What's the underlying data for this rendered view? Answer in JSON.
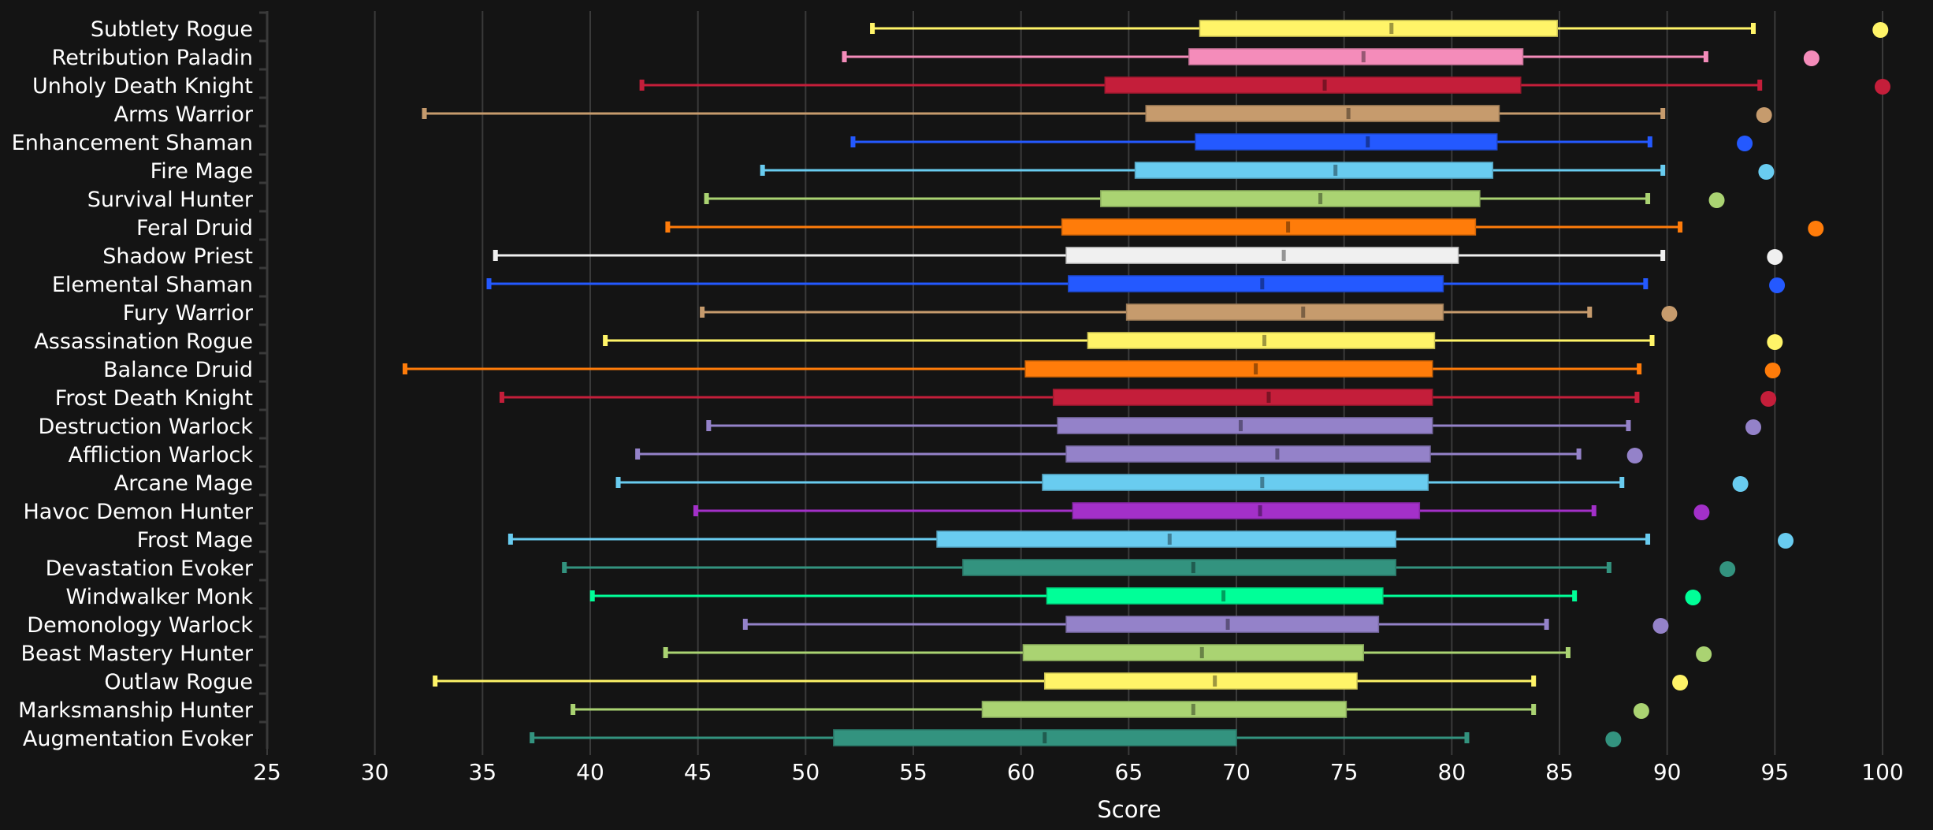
{
  "chart_data": {
    "type": "boxplot",
    "title": "",
    "xlabel": "Score",
    "ylabel": "",
    "xlim": [
      25,
      100
    ],
    "xticks": [
      25,
      30,
      35,
      40,
      45,
      50,
      55,
      60,
      65,
      70,
      75,
      80,
      85,
      90,
      95,
      100
    ],
    "grid": "vertical",
    "legend": "none",
    "series": [
      {
        "name": "Subtlety Rogue",
        "color": "#FFF468",
        "min": 53.1,
        "q1": 68.3,
        "median": 77.2,
        "q3": 84.9,
        "max": 94.0,
        "point": 99.9
      },
      {
        "name": "Retribution Paladin",
        "color": "#F48CBA",
        "min": 51.8,
        "q1": 67.8,
        "median": 75.9,
        "q3": 83.3,
        "max": 91.8,
        "point": 96.7
      },
      {
        "name": "Unholy Death Knight",
        "color": "#C41E3A",
        "min": 42.4,
        "q1": 63.9,
        "median": 74.1,
        "q3": 83.2,
        "max": 94.3,
        "point": 100.0
      },
      {
        "name": "Arms Warrior",
        "color": "#C69B6D",
        "min": 32.3,
        "q1": 65.8,
        "median": 75.2,
        "q3": 82.2,
        "max": 89.8,
        "point": 94.5
      },
      {
        "name": "Enhancement Shaman",
        "color": "#2459FF",
        "min": 52.2,
        "q1": 68.1,
        "median": 76.1,
        "q3": 82.1,
        "max": 89.2,
        "point": 93.6
      },
      {
        "name": "Fire Mage",
        "color": "#69CCF0",
        "min": 48.0,
        "q1": 65.3,
        "median": 74.6,
        "q3": 81.9,
        "max": 89.8,
        "point": 94.6
      },
      {
        "name": "Survival Hunter",
        "color": "#AAD372",
        "min": 45.4,
        "q1": 63.7,
        "median": 73.9,
        "q3": 81.3,
        "max": 89.1,
        "point": 92.3
      },
      {
        "name": "Feral Druid",
        "color": "#FF7C0A",
        "min": 43.6,
        "q1": 61.9,
        "median": 72.4,
        "q3": 81.1,
        "max": 90.6,
        "point": 96.9
      },
      {
        "name": "Shadow Priest",
        "color": "#F0F0F0",
        "min": 35.6,
        "q1": 62.1,
        "median": 72.2,
        "q3": 80.3,
        "max": 89.8,
        "point": 95.0
      },
      {
        "name": "Elemental Shaman",
        "color": "#2459FF",
        "min": 35.3,
        "q1": 62.2,
        "median": 71.2,
        "q3": 79.6,
        "max": 89.0,
        "point": 95.1
      },
      {
        "name": "Fury Warrior",
        "color": "#C69B6D",
        "min": 45.2,
        "q1": 64.9,
        "median": 73.1,
        "q3": 79.6,
        "max": 86.4,
        "point": 90.1
      },
      {
        "name": "Assassination Rogue",
        "color": "#FFF468",
        "min": 40.7,
        "q1": 63.1,
        "median": 71.3,
        "q3": 79.2,
        "max": 89.3,
        "point": 95.0
      },
      {
        "name": "Balance Druid",
        "color": "#FF7C0A",
        "min": 31.4,
        "q1": 60.2,
        "median": 70.9,
        "q3": 79.1,
        "max": 88.7,
        "point": 94.9
      },
      {
        "name": "Frost Death Knight",
        "color": "#C41E3A",
        "min": 35.9,
        "q1": 61.5,
        "median": 71.5,
        "q3": 79.1,
        "max": 88.6,
        "point": 94.7
      },
      {
        "name": "Destruction Warlock",
        "color": "#9482C9",
        "min": 45.5,
        "q1": 61.7,
        "median": 70.2,
        "q3": 79.1,
        "max": 88.2,
        "point": 94.0
      },
      {
        "name": "Affliction Warlock",
        "color": "#9482C9",
        "min": 42.2,
        "q1": 62.1,
        "median": 71.9,
        "q3": 79.0,
        "max": 85.9,
        "point": 88.5
      },
      {
        "name": "Arcane Mage",
        "color": "#69CCF0",
        "min": 41.3,
        "q1": 61.0,
        "median": 71.2,
        "q3": 78.9,
        "max": 87.9,
        "point": 93.4
      },
      {
        "name": "Havoc Demon Hunter",
        "color": "#A330C9",
        "min": 44.9,
        "q1": 62.4,
        "median": 71.1,
        "q3": 78.5,
        "max": 86.6,
        "point": 91.6
      },
      {
        "name": "Frost Mage",
        "color": "#69CCF0",
        "min": 36.3,
        "q1": 56.1,
        "median": 66.9,
        "q3": 77.4,
        "max": 89.1,
        "point": 95.5
      },
      {
        "name": "Devastation Evoker",
        "color": "#33937F",
        "min": 38.8,
        "q1": 57.3,
        "median": 68.0,
        "q3": 77.4,
        "max": 87.3,
        "point": 92.8
      },
      {
        "name": "Windwalker Monk",
        "color": "#00FF98",
        "min": 40.1,
        "q1": 61.2,
        "median": 69.4,
        "q3": 76.8,
        "max": 85.7,
        "point": 91.2
      },
      {
        "name": "Demonology Warlock",
        "color": "#9482C9",
        "min": 47.2,
        "q1": 62.1,
        "median": 69.6,
        "q3": 76.6,
        "max": 84.4,
        "point": 89.7
      },
      {
        "name": "Beast Mastery Hunter",
        "color": "#AAD372",
        "min": 43.5,
        "q1": 60.1,
        "median": 68.4,
        "q3": 75.9,
        "max": 85.4,
        "point": 91.7
      },
      {
        "name": "Outlaw Rogue",
        "color": "#FFF468",
        "min": 32.8,
        "q1": 61.1,
        "median": 69.0,
        "q3": 75.6,
        "max": 83.8,
        "point": 90.6
      },
      {
        "name": "Marksmanship Hunter",
        "color": "#AAD372",
        "min": 39.2,
        "q1": 58.2,
        "median": 68.0,
        "q3": 75.1,
        "max": 83.8,
        "point": 88.8
      },
      {
        "name": "Augmentation Evoker",
        "color": "#33937F",
        "min": 37.3,
        "q1": 51.3,
        "median": 61.1,
        "q3": 70.0,
        "max": 80.7,
        "point": 87.5
      }
    ]
  }
}
